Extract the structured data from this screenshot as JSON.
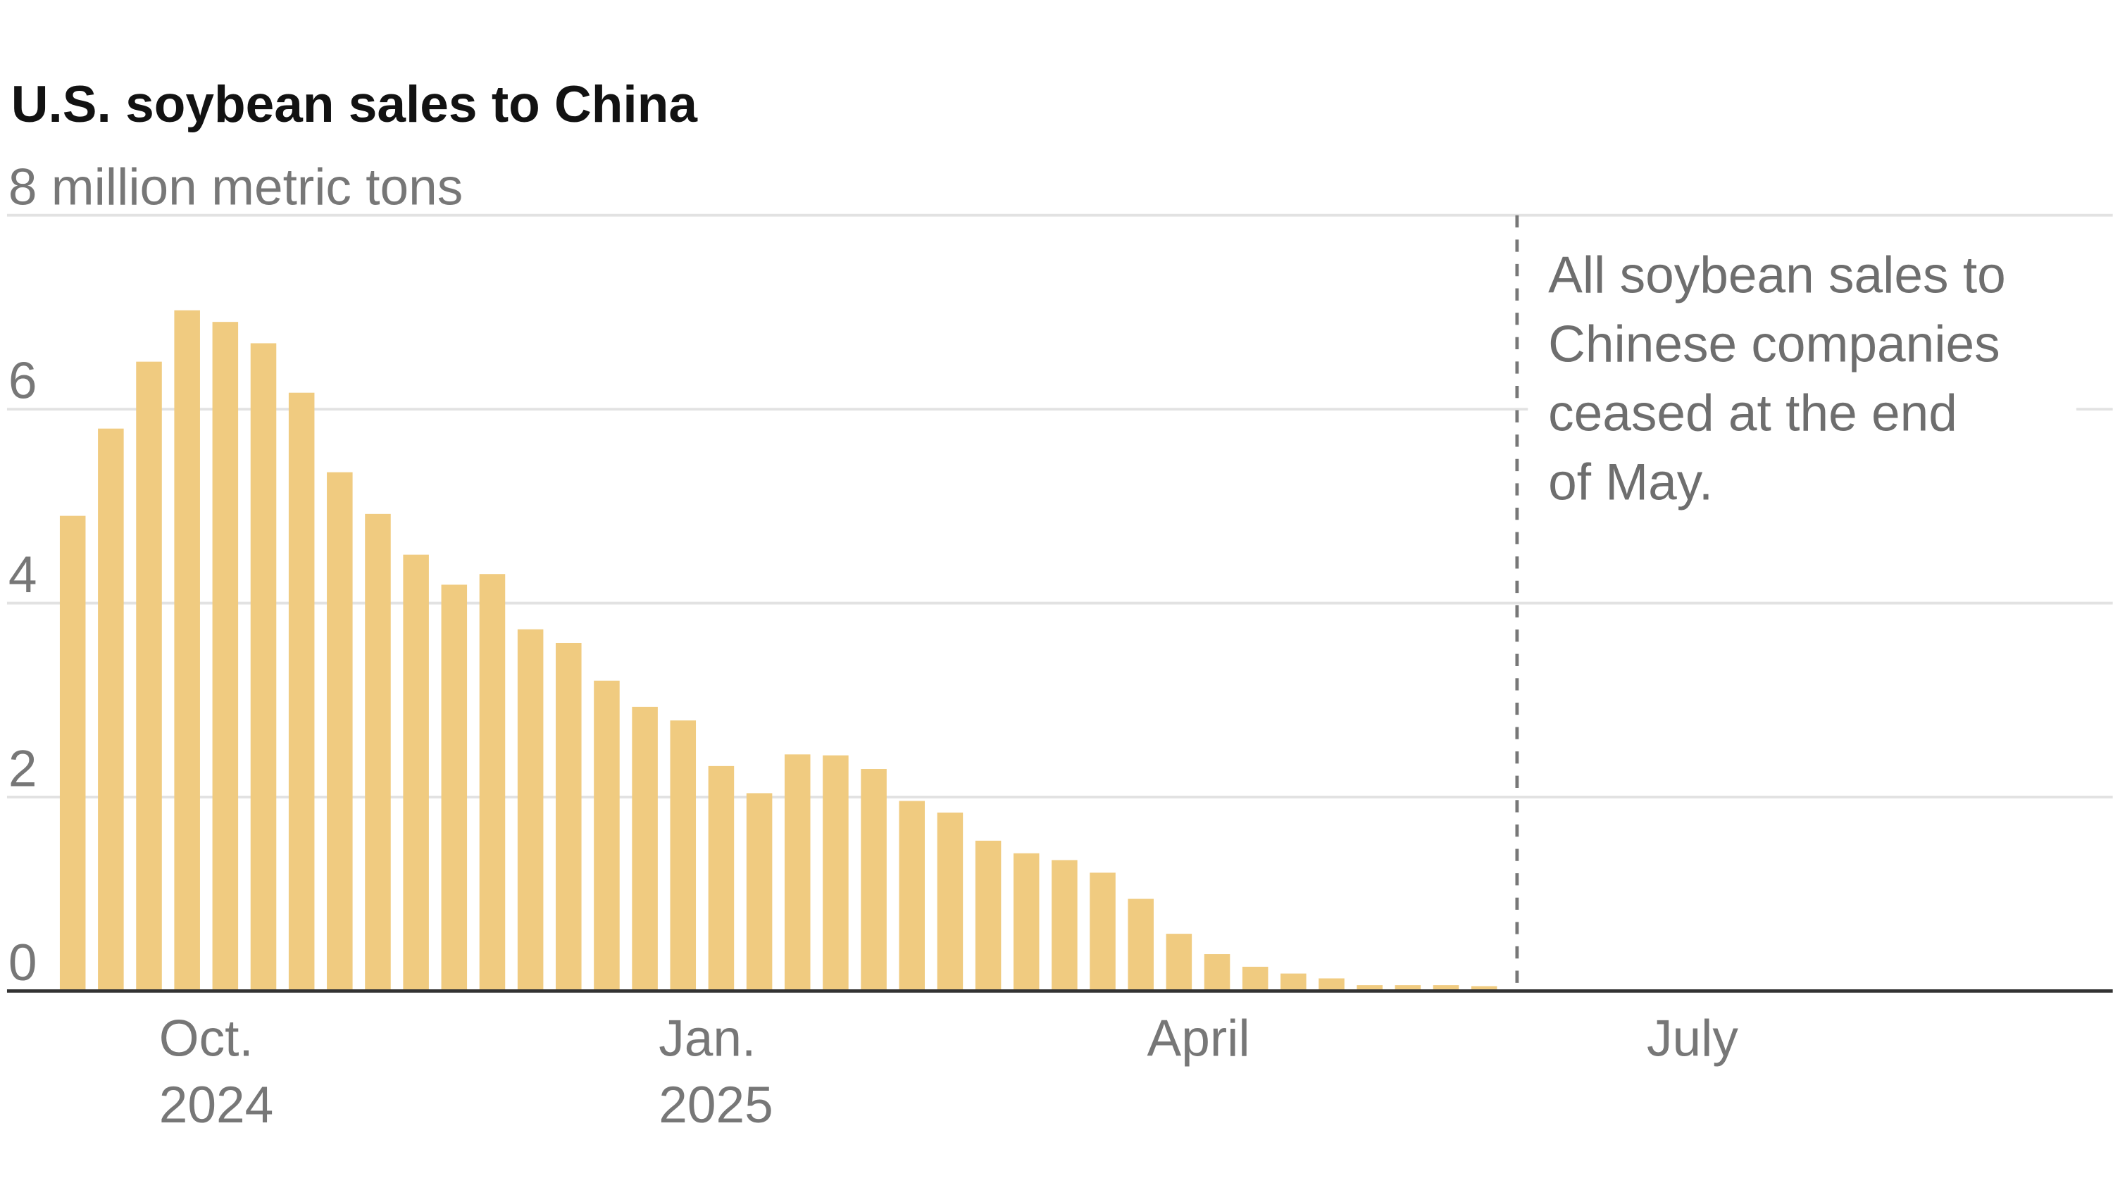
{
  "chart_data": {
    "type": "bar",
    "title": "U.S. soybean sales to China",
    "ylabel": "8 million metric tons",
    "xlabel": "",
    "ylim": [
      0,
      8
    ],
    "y_ticks": [
      "0",
      "2",
      "4",
      "6"
    ],
    "x_ticks": [
      {
        "line1": "Oct.",
        "line2": "2024",
        "index": 2.6
      },
      {
        "line1": "Jan.",
        "line2": "2025",
        "index": 15.7
      },
      {
        "line1": "April",
        "line2": "",
        "index": 28.5
      },
      {
        "line1": "July",
        "line2": "",
        "index": 41.6
      }
    ],
    "x_slots": 54,
    "grid": true,
    "bar_color": "#f0cb80",
    "values": [
      4.9,
      5.8,
      6.49,
      7.02,
      6.9,
      6.68,
      6.17,
      5.35,
      4.92,
      4.5,
      4.19,
      4.3,
      3.73,
      3.59,
      3.2,
      2.93,
      2.79,
      2.32,
      2.04,
      2.44,
      2.43,
      2.29,
      1.96,
      1.84,
      1.55,
      1.42,
      1.35,
      1.22,
      0.95,
      0.59,
      0.38,
      0.25,
      0.18,
      0.13,
      0.06,
      0.06,
      0.06,
      0.05
    ],
    "annotation": {
      "at_index": 38.2,
      "lines": [
        "All soybean sales to",
        "Chinese companies",
        "ceased at the end",
        "of May."
      ]
    }
  }
}
